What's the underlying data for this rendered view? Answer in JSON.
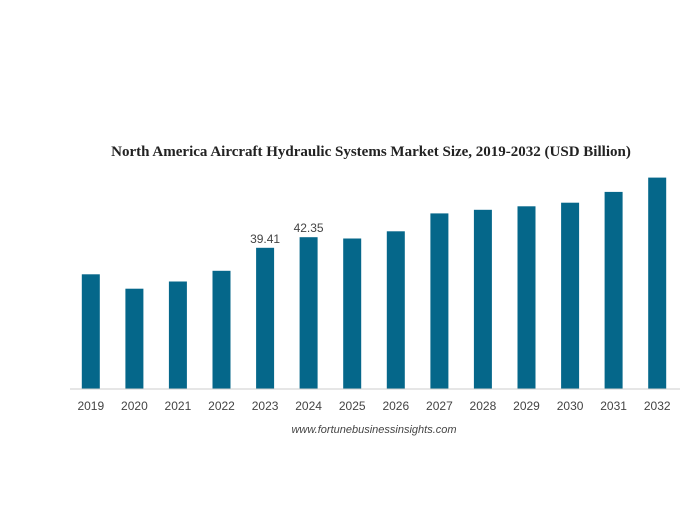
{
  "chart_data": {
    "type": "bar",
    "title": "North America Aircraft Hydraulic Systems Market Size, 2019-2032 (USD Billion)",
    "xlabel": "",
    "ylabel": "",
    "categories": [
      "2019",
      "2020",
      "2021",
      "2022",
      "2023",
      "2024",
      "2025",
      "2026",
      "2027",
      "2028",
      "2029",
      "2030",
      "2031",
      "2032"
    ],
    "values": [
      32.0,
      28.0,
      30.0,
      33.0,
      39.41,
      42.35,
      42.0,
      44.0,
      49.0,
      50.0,
      51.0,
      52.0,
      55.0,
      59.0
    ],
    "data_labels": [
      {
        "index": 4,
        "text": "39.41"
      },
      {
        "index": 5,
        "text": "42.35"
      }
    ],
    "ylim": [
      0,
      60
    ],
    "grid": false,
    "legend": "none",
    "bar_color": "#05678a",
    "source": "www.fortunebusinessinsights.com"
  }
}
